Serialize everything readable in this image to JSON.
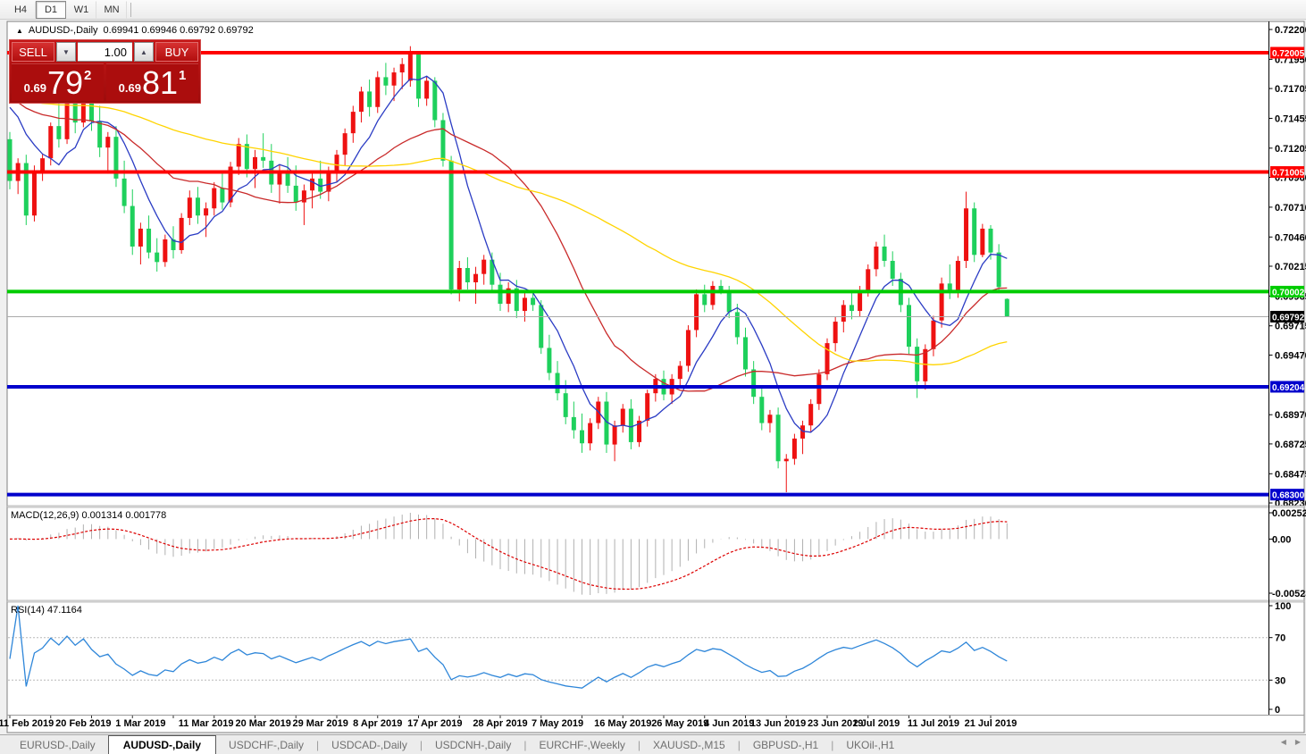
{
  "toolbar": {
    "timeframes": [
      "H4",
      "D1",
      "W1",
      "MN"
    ],
    "active": "D1"
  },
  "window": {
    "title": {
      "marker": "▲",
      "symbol": "AUDUSD-,Daily",
      "ohlc": "0.69941 0.69946 0.69792 0.69792"
    },
    "trade_panel": {
      "sell_label": "SELL",
      "buy_label": "BUY",
      "volume": "1.00",
      "spin_down": "▼",
      "spin_up": "▲",
      "sell": {
        "prefix": "0.69",
        "big": "79",
        "sup": "2"
      },
      "buy": {
        "prefix": "0.69",
        "big": "81",
        "sup": "1"
      }
    }
  },
  "chart_data": {
    "type": "candlestick",
    "symbol": "AUDUSD-,Daily",
    "colors": {
      "bull": "#ee1111",
      "bear": "#1ed05c"
    },
    "price_ticks": [
      "0.72200",
      "0.71950",
      "0.71705",
      "0.71455",
      "0.71205",
      "0.70960",
      "0.70710",
      "0.70460",
      "0.70215",
      "0.69965",
      "0.69715",
      "0.69470",
      "0.68970",
      "0.68725",
      "0.68475",
      "0.68230"
    ],
    "markers": [
      {
        "label": "0.72005",
        "price": 0.72005,
        "color": "#ff0000",
        "width": 4
      },
      {
        "label": "0.71005",
        "price": 0.71005,
        "color": "#ff0000",
        "width": 4
      },
      {
        "label": "0.70002",
        "price": 0.70002,
        "color": "#00cc00",
        "width": 4
      },
      {
        "label": "0.69204",
        "price": 0.69204,
        "color": "#0000cc",
        "width": 4
      },
      {
        "label": "0.68300",
        "price": 0.683,
        "color": "#0000cc",
        "width": 4
      }
    ],
    "current_price": {
      "label": "0.69792",
      "price": 0.69792,
      "line_color": "#aaaaaa",
      "box_color": "#000000"
    },
    "ma": [
      {
        "name": "ma-fast",
        "period": 7,
        "color": "#2b3cc4"
      },
      {
        "name": "ma-mid",
        "period": 21,
        "color": "#c92a2a"
      },
      {
        "name": "ma-slow",
        "period": 50,
        "color": "#ffd400"
      }
    ],
    "ma_seed": 0.7165,
    "date_labels": [
      {
        "t": "11 Feb 2019",
        "i": 2
      },
      {
        "t": "20 Feb 2019",
        "i": 9
      },
      {
        "t": "1 Mar 2019",
        "i": 16
      },
      {
        "t": "11 Mar 2019",
        "i": 24
      },
      {
        "t": "20 Mar 2019",
        "i": 31
      },
      {
        "t": "29 Mar 2019",
        "i": 38
      },
      {
        "t": "8 Apr 2019",
        "i": 45
      },
      {
        "t": "17 Apr 2019",
        "i": 52
      },
      {
        "t": "28 Apr 2019",
        "i": 60
      },
      {
        "t": "7 May 2019",
        "i": 67
      },
      {
        "t": "16 May 2019",
        "i": 75
      },
      {
        "t": "26 May 2019",
        "i": 82
      },
      {
        "t": "4 Jun 2019",
        "i": 88
      },
      {
        "t": "13 Jun 2019",
        "i": 94
      },
      {
        "t": "23 Jun 2019",
        "i": 101
      },
      {
        "t": "2 Jul 2019",
        "i": 106
      },
      {
        "t": "11 Jul 2019",
        "i": 113
      },
      {
        "t": "21 Jul 2019",
        "i": 120
      }
    ],
    "candles": [
      [
        0.7128,
        0.7134,
        0.7086,
        0.7093
      ],
      [
        0.7093,
        0.7112,
        0.7082,
        0.7108
      ],
      [
        0.7108,
        0.7115,
        0.7056,
        0.7064
      ],
      [
        0.7064,
        0.7106,
        0.7059,
        0.7102
      ],
      [
        0.7102,
        0.7116,
        0.7093,
        0.7112
      ],
      [
        0.7112,
        0.7142,
        0.7106,
        0.7139
      ],
      [
        0.7139,
        0.7158,
        0.7121,
        0.7128
      ],
      [
        0.7128,
        0.7165,
        0.7124,
        0.716
      ],
      [
        0.716,
        0.7168,
        0.7133,
        0.7142
      ],
      [
        0.7142,
        0.7175,
        0.7138,
        0.7169
      ],
      [
        0.7169,
        0.7172,
        0.7135,
        0.7143
      ],
      [
        0.7143,
        0.7156,
        0.7113,
        0.7121
      ],
      [
        0.7121,
        0.7134,
        0.7099,
        0.713
      ],
      [
        0.713,
        0.7139,
        0.7088,
        0.7095
      ],
      [
        0.7095,
        0.711,
        0.7066,
        0.7072
      ],
      [
        0.7072,
        0.7086,
        0.7031,
        0.7038
      ],
      [
        0.7038,
        0.7058,
        0.7023,
        0.7053
      ],
      [
        0.7053,
        0.7064,
        0.7028,
        0.7033
      ],
      [
        0.7033,
        0.7045,
        0.7017,
        0.7025
      ],
      [
        0.7025,
        0.7048,
        0.7021,
        0.7044
      ],
      [
        0.7044,
        0.7055,
        0.7028,
        0.7035
      ],
      [
        0.7035,
        0.7066,
        0.7032,
        0.7062
      ],
      [
        0.7062,
        0.7085,
        0.7056,
        0.7079
      ],
      [
        0.7079,
        0.7088,
        0.7057,
        0.7064
      ],
      [
        0.7064,
        0.7075,
        0.7046,
        0.707
      ],
      [
        0.707,
        0.7092,
        0.7064,
        0.7087
      ],
      [
        0.7087,
        0.7101,
        0.7069,
        0.7075
      ],
      [
        0.7075,
        0.7109,
        0.7071,
        0.7105
      ],
      [
        0.7105,
        0.7129,
        0.7098,
        0.7124
      ],
      [
        0.7124,
        0.7132,
        0.7096,
        0.7103
      ],
      [
        0.7103,
        0.7119,
        0.7087,
        0.7113
      ],
      [
        0.7113,
        0.7133,
        0.7104,
        0.711
      ],
      [
        0.711,
        0.7124,
        0.7083,
        0.709
      ],
      [
        0.709,
        0.7107,
        0.7074,
        0.7102
      ],
      [
        0.7102,
        0.7113,
        0.7083,
        0.7089
      ],
      [
        0.7089,
        0.7106,
        0.7068,
        0.7075
      ],
      [
        0.7075,
        0.709,
        0.7056,
        0.7085
      ],
      [
        0.7085,
        0.71,
        0.707,
        0.7095
      ],
      [
        0.7095,
        0.711,
        0.7078,
        0.7084
      ],
      [
        0.7084,
        0.7105,
        0.7076,
        0.7101
      ],
      [
        0.7101,
        0.7119,
        0.7092,
        0.7115
      ],
      [
        0.7115,
        0.7137,
        0.7106,
        0.7133
      ],
      [
        0.7133,
        0.7156,
        0.7125,
        0.7151
      ],
      [
        0.7151,
        0.7172,
        0.7142,
        0.7168
      ],
      [
        0.7168,
        0.7178,
        0.7147,
        0.7155
      ],
      [
        0.7155,
        0.7185,
        0.715,
        0.718
      ],
      [
        0.718,
        0.7192,
        0.7165,
        0.7173
      ],
      [
        0.7173,
        0.7188,
        0.716,
        0.7184
      ],
      [
        0.7184,
        0.7196,
        0.717,
        0.7191
      ],
      [
        0.7177,
        0.7206,
        0.7172,
        0.7199
      ],
      [
        0.7199,
        0.7202,
        0.7155,
        0.7162
      ],
      [
        0.7162,
        0.7181,
        0.7156,
        0.7177
      ],
      [
        0.7177,
        0.718,
        0.7138,
        0.7144
      ],
      [
        0.7144,
        0.715,
        0.7105,
        0.711
      ],
      [
        0.711,
        0.7114,
        0.6998,
        0.7002
      ],
      [
        0.7002,
        0.7026,
        0.6992,
        0.702
      ],
      [
        0.702,
        0.7029,
        0.7002,
        0.7008
      ],
      [
        0.7008,
        0.7021,
        0.699,
        0.7015
      ],
      [
        0.7015,
        0.7031,
        0.7006,
        0.7027
      ],
      [
        0.7027,
        0.7033,
        0.7001,
        0.7006
      ],
      [
        0.7006,
        0.7016,
        0.6984,
        0.699
      ],
      [
        0.699,
        0.7008,
        0.6983,
        0.7003
      ],
      [
        0.7003,
        0.701,
        0.6978,
        0.6984
      ],
      [
        0.6984,
        0.6999,
        0.6975,
        0.6995
      ],
      [
        0.6995,
        0.7001,
        0.6984,
        0.6989
      ],
      [
        0.6989,
        0.6993,
        0.6948,
        0.6953
      ],
      [
        0.6953,
        0.6964,
        0.6926,
        0.6932
      ],
      [
        0.6932,
        0.6942,
        0.6909,
        0.6915
      ],
      [
        0.6915,
        0.6926,
        0.6889,
        0.6895
      ],
      [
        0.6895,
        0.6908,
        0.6877,
        0.6884
      ],
      [
        0.6884,
        0.6898,
        0.6865,
        0.6873
      ],
      [
        0.6873,
        0.6894,
        0.6867,
        0.689
      ],
      [
        0.689,
        0.6912,
        0.6885,
        0.6908
      ],
      [
        0.6908,
        0.6916,
        0.6865,
        0.6872
      ],
      [
        0.6872,
        0.6892,
        0.6858,
        0.6888
      ],
      [
        0.6888,
        0.6906,
        0.6882,
        0.6902
      ],
      [
        0.6902,
        0.691,
        0.6868,
        0.6874
      ],
      [
        0.6874,
        0.6896,
        0.687,
        0.6892
      ],
      [
        0.6892,
        0.6918,
        0.6887,
        0.6915
      ],
      [
        0.6915,
        0.6931,
        0.6908,
        0.6927
      ],
      [
        0.6927,
        0.6934,
        0.6909,
        0.6914
      ],
      [
        0.6914,
        0.6931,
        0.6906,
        0.6927
      ],
      [
        0.6927,
        0.6942,
        0.692,
        0.6938
      ],
      [
        0.6938,
        0.6972,
        0.6933,
        0.6968
      ],
      [
        0.6968,
        0.7002,
        0.6962,
        0.6998
      ],
      [
        0.6998,
        0.7006,
        0.6983,
        0.6989
      ],
      [
        0.6989,
        0.7009,
        0.6985,
        0.7005
      ],
      [
        0.7005,
        0.701,
        0.6998,
        0.7001
      ],
      [
        0.7001,
        0.7005,
        0.6978,
        0.6983
      ],
      [
        0.6983,
        0.699,
        0.6956,
        0.6962
      ],
      [
        0.6962,
        0.697,
        0.6929,
        0.6935
      ],
      [
        0.6935,
        0.6942,
        0.6906,
        0.6912
      ],
      [
        0.6912,
        0.6919,
        0.6884,
        0.689
      ],
      [
        0.689,
        0.6901,
        0.6882,
        0.6897
      ],
      [
        0.6897,
        0.6903,
        0.6852,
        0.6858
      ],
      [
        0.6858,
        0.6864,
        0.6832,
        0.686
      ],
      [
        0.686,
        0.6881,
        0.6855,
        0.6877
      ],
      [
        0.6877,
        0.6892,
        0.6864,
        0.6888
      ],
      [
        0.6888,
        0.691,
        0.6882,
        0.6906
      ],
      [
        0.6906,
        0.6935,
        0.6901,
        0.6931
      ],
      [
        0.6931,
        0.6961,
        0.6926,
        0.6957
      ],
      [
        0.6957,
        0.6979,
        0.695,
        0.6975
      ],
      [
        0.6975,
        0.6993,
        0.6966,
        0.6989
      ],
      [
        0.6989,
        0.7,
        0.6977,
        0.6984
      ],
      [
        0.6984,
        0.7005,
        0.6979,
        0.7001
      ],
      [
        0.7001,
        0.7023,
        0.6996,
        0.7019
      ],
      [
        0.7019,
        0.7042,
        0.7013,
        0.7038
      ],
      [
        0.7038,
        0.7048,
        0.7021,
        0.7026
      ],
      [
        0.7026,
        0.7034,
        0.7005,
        0.7011
      ],
      [
        0.7011,
        0.7016,
        0.6983,
        0.6989
      ],
      [
        0.6989,
        0.6995,
        0.6948,
        0.6954
      ],
      [
        0.6954,
        0.6961,
        0.6911,
        0.6925
      ],
      [
        0.6925,
        0.6956,
        0.6918,
        0.6952
      ],
      [
        0.6952,
        0.698,
        0.6946,
        0.6976
      ],
      [
        0.6976,
        0.7012,
        0.697,
        0.7007
      ],
      [
        0.7007,
        0.7023,
        0.6994,
        0.7
      ],
      [
        0.7,
        0.703,
        0.6995,
        0.7026
      ],
      [
        0.7026,
        0.7084,
        0.702,
        0.707
      ],
      [
        0.707,
        0.7075,
        0.7025,
        0.7031
      ],
      [
        0.7031,
        0.7057,
        0.7029,
        0.7053
      ],
      [
        0.7053,
        0.7056,
        0.7027,
        0.7033
      ],
      [
        0.7033,
        0.704,
        0.6999,
        0.7004
      ],
      [
        0.69941,
        0.69946,
        0.69792,
        0.69792
      ]
    ]
  },
  "macd": {
    "label": "MACD(12,26,9) 0.001314 0.001778",
    "fast": 12,
    "slow": 26,
    "signal": 9,
    "axis_max": "0.002522",
    "axis_zero": "0.00",
    "axis_min": "-0.005234",
    "bar_color": "#b0b0b0",
    "signal_color": "#dd0000"
  },
  "rsi": {
    "label": "RSI(14) 47.1164",
    "period": 14,
    "levels": [
      70,
      30
    ],
    "axis_labels": [
      "100",
      "70",
      "30",
      "0"
    ],
    "color": "#2e86d9"
  },
  "tabs": {
    "items": [
      "EURUSD-,Daily",
      "AUDUSD-,Daily",
      "USDCHF-,Daily",
      "USDCAD-,Daily",
      "USDCNH-,Daily",
      "EURCHF-,Weekly",
      "XAUUSD-,M15",
      "GBPUSD-,H1",
      "UKOil-,H1"
    ],
    "active": "AUDUSD-,Daily",
    "scroll_left": "◀",
    "scroll_right": "▶"
  }
}
